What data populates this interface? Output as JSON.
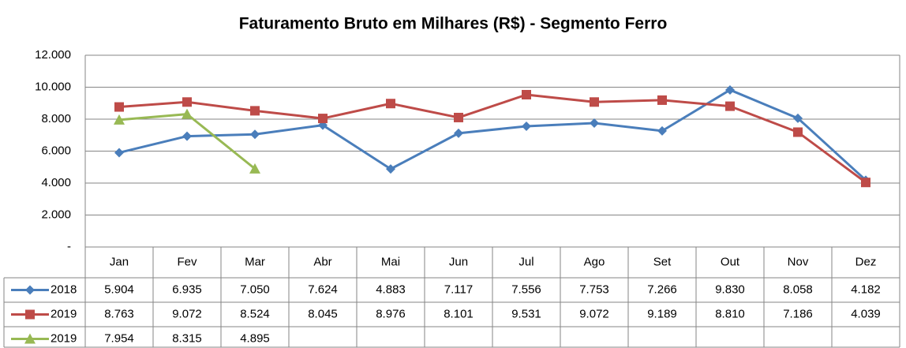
{
  "chart_data": {
    "type": "line",
    "title": "Faturamento Bruto em Milhares (R$) - Segmento Ferro",
    "categories": [
      "Jan",
      "Fev",
      "Mar",
      "Abr",
      "Mai",
      "Jun",
      "Jul",
      "Ago",
      "Set",
      "Out",
      "Nov",
      "Dez"
    ],
    "series": [
      {
        "name": "2018",
        "color": "#4a7ebb",
        "marker": "diamond",
        "values": [
          5904,
          6935,
          7050,
          7624,
          4883,
          7117,
          7556,
          7753,
          7266,
          9830,
          8058,
          4182
        ],
        "value_labels": [
          "5.904",
          "6.935",
          "7.050",
          "7.624",
          "4.883",
          "7.117",
          "7.556",
          "7.753",
          "7.266",
          "9.830",
          "8.058",
          "4.182"
        ]
      },
      {
        "name": "2019",
        "color": "#be4b48",
        "marker": "square",
        "values": [
          8763,
          9072,
          8524,
          8045,
          8976,
          8101,
          9531,
          9072,
          9189,
          8810,
          7186,
          4039
        ],
        "value_labels": [
          "8.763",
          "9.072",
          "8.524",
          "8.045",
          "8.976",
          "8.101",
          "9.531",
          "9.072",
          "9.189",
          "8.810",
          "7.186",
          "4.039"
        ]
      },
      {
        "name": "2019",
        "color": "#98b954",
        "marker": "triangle",
        "values": [
          7954,
          8315,
          4895,
          null,
          null,
          null,
          null,
          null,
          null,
          null,
          null,
          null
        ],
        "value_labels": [
          "7.954",
          "8.315",
          "4.895",
          null,
          null,
          null,
          null,
          null,
          null,
          null,
          null,
          null
        ]
      }
    ],
    "ylim": [
      0,
      12000
    ],
    "yticks": [
      {
        "value": 0,
        "label": "-"
      },
      {
        "value": 2000,
        "label": "2.000"
      },
      {
        "value": 4000,
        "label": "4.000"
      },
      {
        "value": 6000,
        "label": "6.000"
      },
      {
        "value": 8000,
        "label": "8.000"
      },
      {
        "value": 10000,
        "label": "10.000"
      },
      {
        "value": 12000,
        "label": "12.000"
      }
    ],
    "grid": true
  }
}
